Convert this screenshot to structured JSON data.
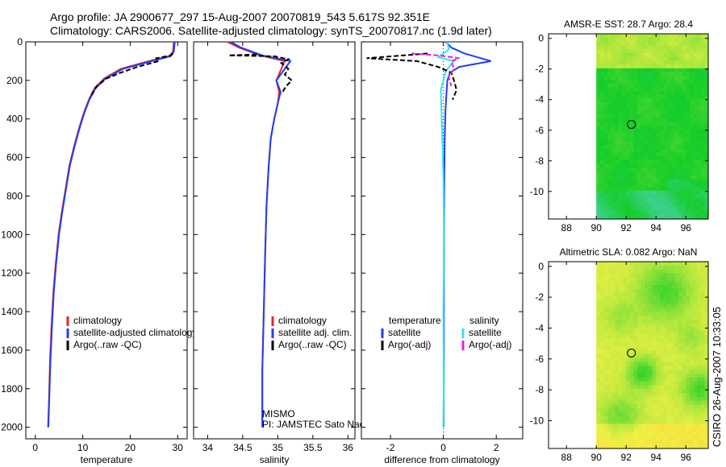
{
  "header": {
    "line1": "Argo profile: JA 2900677_297 15-Aug-2007 20070819_543 5.617S 92.351E",
    "line2": "Climatology: CARS2006. Satellite-adjusted climatology: synTS_20070817.nc (1.9d later)"
  },
  "side_label": "CSIRO 26-Aug-2007 10:33:05",
  "colors": {
    "climatology": "#e8242a",
    "satellite": "#1f3ff0",
    "argo": "#000000",
    "satellite_cyan": "#2fe6f0",
    "argo_adj": "#e81ee0",
    "map_land": "#ffffff"
  },
  "chart_data": [
    {
      "type": "line",
      "id": "temperature",
      "xlabel": "temperature",
      "ylabel": "",
      "xlim": [
        -2,
        32
      ],
      "ylim": [
        2060,
        0
      ],
      "xticks": [
        0,
        10,
        20,
        30
      ],
      "yticks": [
        0,
        200,
        400,
        600,
        800,
        1000,
        1200,
        1400,
        1600,
        1800,
        2000
      ],
      "legend": {
        "position": "lower-right",
        "entries": [
          "climatology",
          "satellite-adjusted climatology",
          "Argo(..raw -QC)"
        ]
      },
      "series": [
        {
          "name": "climatology",
          "color": "#e8242a",
          "dash": "",
          "x": [
            29.2,
            29.0,
            28.2,
            24.0,
            18.0,
            14.5,
            12.5,
            11.3,
            10.2,
            9.2,
            8.2,
            7.2,
            6.4,
            5.6,
            4.9,
            4.3,
            3.8,
            3.4,
            3.1,
            2.9,
            2.7
          ],
          "y": [
            0,
            50,
            75,
            100,
            140,
            190,
            240,
            300,
            370,
            450,
            540,
            640,
            760,
            880,
            1000,
            1150,
            1300,
            1480,
            1650,
            1850,
            2000
          ]
        },
        {
          "name": "satellite-adjusted climatology",
          "color": "#1f3ff0",
          "dash": "",
          "x": [
            29.4,
            29.2,
            28.5,
            24.5,
            18.5,
            14.8,
            12.7,
            11.4,
            10.3,
            9.3,
            8.3,
            7.3,
            6.5,
            5.7,
            5.0,
            4.4,
            3.9,
            3.5,
            3.2,
            2.95,
            2.75
          ],
          "y": [
            0,
            50,
            75,
            100,
            140,
            190,
            240,
            300,
            370,
            450,
            540,
            640,
            760,
            880,
            1000,
            1150,
            1300,
            1480,
            1650,
            1850,
            2000
          ]
        },
        {
          "name": "Argo(..raw -QC)",
          "color": "#000000",
          "dash": "6,3",
          "x": [
            29.0,
            28.6,
            25.5,
            26.0,
            21.5,
            18.0,
            15.0,
            13.0,
            11.5
          ],
          "y": [
            60,
            70,
            85,
            100,
            130,
            160,
            190,
            230,
            290
          ]
        }
      ]
    },
    {
      "type": "line",
      "id": "salinity",
      "xlabel": "salinity",
      "xlim": [
        33.8,
        36.1
      ],
      "ylim": [
        2060,
        0
      ],
      "xticks": [
        34,
        34.5,
        35,
        35.5,
        36
      ],
      "legend": {
        "position": "lower-right",
        "entries": [
          "climatology",
          "satellite adj. clim.",
          "Argo(..raw -QC)"
        ]
      },
      "annotation": [
        "MISMO",
        "PI: JAMSTEC Sato Naoki"
      ],
      "series": [
        {
          "name": "climatology",
          "color": "#e8242a",
          "dash": "",
          "x": [
            34.28,
            34.45,
            34.75,
            35.1,
            35.05,
            34.98,
            35.02,
            35.0,
            34.95,
            34.9,
            34.87,
            34.84,
            34.82,
            34.8,
            34.78,
            34.78
          ],
          "y": [
            0,
            30,
            70,
            100,
            140,
            200,
            260,
            320,
            400,
            500,
            650,
            850,
            1100,
            1400,
            1700,
            2000
          ]
        },
        {
          "name": "satellite adj. clim.",
          "color": "#1f3ff0",
          "dash": "",
          "x": [
            34.33,
            34.48,
            34.78,
            35.18,
            35.1,
            34.98,
            35.04,
            35.0,
            34.95,
            34.9,
            34.87,
            34.84,
            34.82,
            34.8,
            34.78,
            34.78
          ],
          "y": [
            0,
            30,
            70,
            100,
            140,
            200,
            260,
            320,
            400,
            500,
            650,
            850,
            1100,
            1400,
            1700,
            2000
          ]
        },
        {
          "name": "Argo(..raw -QC)",
          "color": "#000000",
          "dash": "6,3",
          "x": [
            34.7,
            34.3,
            34.95,
            35.15,
            35.05,
            35.15,
            35.1,
            35.2,
            35.12,
            35.05
          ],
          "y": [
            65,
            70,
            75,
            90,
            110,
            140,
            170,
            200,
            230,
            270
          ]
        }
      ]
    },
    {
      "type": "line",
      "id": "difference",
      "xlabel": "difference from climatology",
      "xlim": [
        -3.1,
        3.0
      ],
      "ylim": [
        2060,
        0
      ],
      "xticks": [
        -2,
        0,
        2
      ],
      "legend": {
        "position": "lower-right",
        "entries": [
          "temperature",
          "salinity",
          "satellite",
          "satellite",
          "Argo(-adj)",
          "Argo(-adj)"
        ]
      },
      "series": [
        {
          "name": "temperature satellite",
          "color": "#1f3ff0",
          "dash": "",
          "x": [
            0.1,
            0.3,
            0.8,
            1.8,
            0.6,
            0.25,
            0.15,
            0.12,
            0.08,
            0.05,
            0.03,
            0.02,
            0.02,
            0.01
          ],
          "y": [
            0,
            30,
            60,
            100,
            130,
            160,
            200,
            260,
            350,
            500,
            800,
            1200,
            1600,
            2000
          ]
        },
        {
          "name": "salinity satellite",
          "color": "#2fe6f0",
          "dash": "",
          "x": [
            0.15,
            0.2,
            -0.2,
            0.4,
            0.1,
            -0.1,
            -0.05,
            0.0,
            0.02,
            0.0,
            0.01,
            0.0
          ],
          "y": [
            0,
            40,
            80,
            100,
            150,
            250,
            450,
            700,
            1000,
            1400,
            1800,
            2000
          ]
        },
        {
          "name": "temperature Argo(-adj)",
          "color": "#000000",
          "dash": "6,3",
          "x": [
            -0.6,
            -1.5,
            -2.9,
            -1.0,
            -0.2,
            0.3,
            0.4,
            0.5,
            0.35
          ],
          "y": [
            60,
            70,
            85,
            100,
            130,
            160,
            200,
            250,
            300
          ]
        },
        {
          "name": "salinity Argo(-adj)",
          "color": "#e81ee0",
          "dash": "6,3",
          "x": [
            -1.2,
            -0.2,
            0.6,
            0.3,
            0.4,
            0.2,
            0.3
          ],
          "y": [
            60,
            70,
            85,
            100,
            140,
            180,
            230
          ]
        }
      ]
    },
    {
      "type": "heatmap",
      "id": "sst_map",
      "title": "AMSR-E SST: 28.7 Argo: 28.4",
      "xlim": [
        86.8,
        97.5
      ],
      "ylim": [
        -11.8,
        0.3
      ],
      "xticks": [
        88,
        90,
        92,
        94,
        96
      ],
      "yticks": [
        0,
        -2,
        -4,
        -6,
        -8,
        -10
      ],
      "land_edge_lon": 90,
      "marker": {
        "lon": 92.351,
        "lat": -5.617
      }
    },
    {
      "type": "heatmap",
      "id": "sla_map",
      "title": "Altimetric SLA: 0.082 Argo: NaN",
      "xlim": [
        86.8,
        97.5
      ],
      "ylim": [
        -11.8,
        0.3
      ],
      "xticks": [
        88,
        90,
        92,
        94,
        96
      ],
      "yticks": [
        0,
        -2,
        -4,
        -6,
        -8,
        -10
      ],
      "land_edge_lon": 90,
      "marker": {
        "lon": 92.351,
        "lat": -5.617
      }
    }
  ]
}
